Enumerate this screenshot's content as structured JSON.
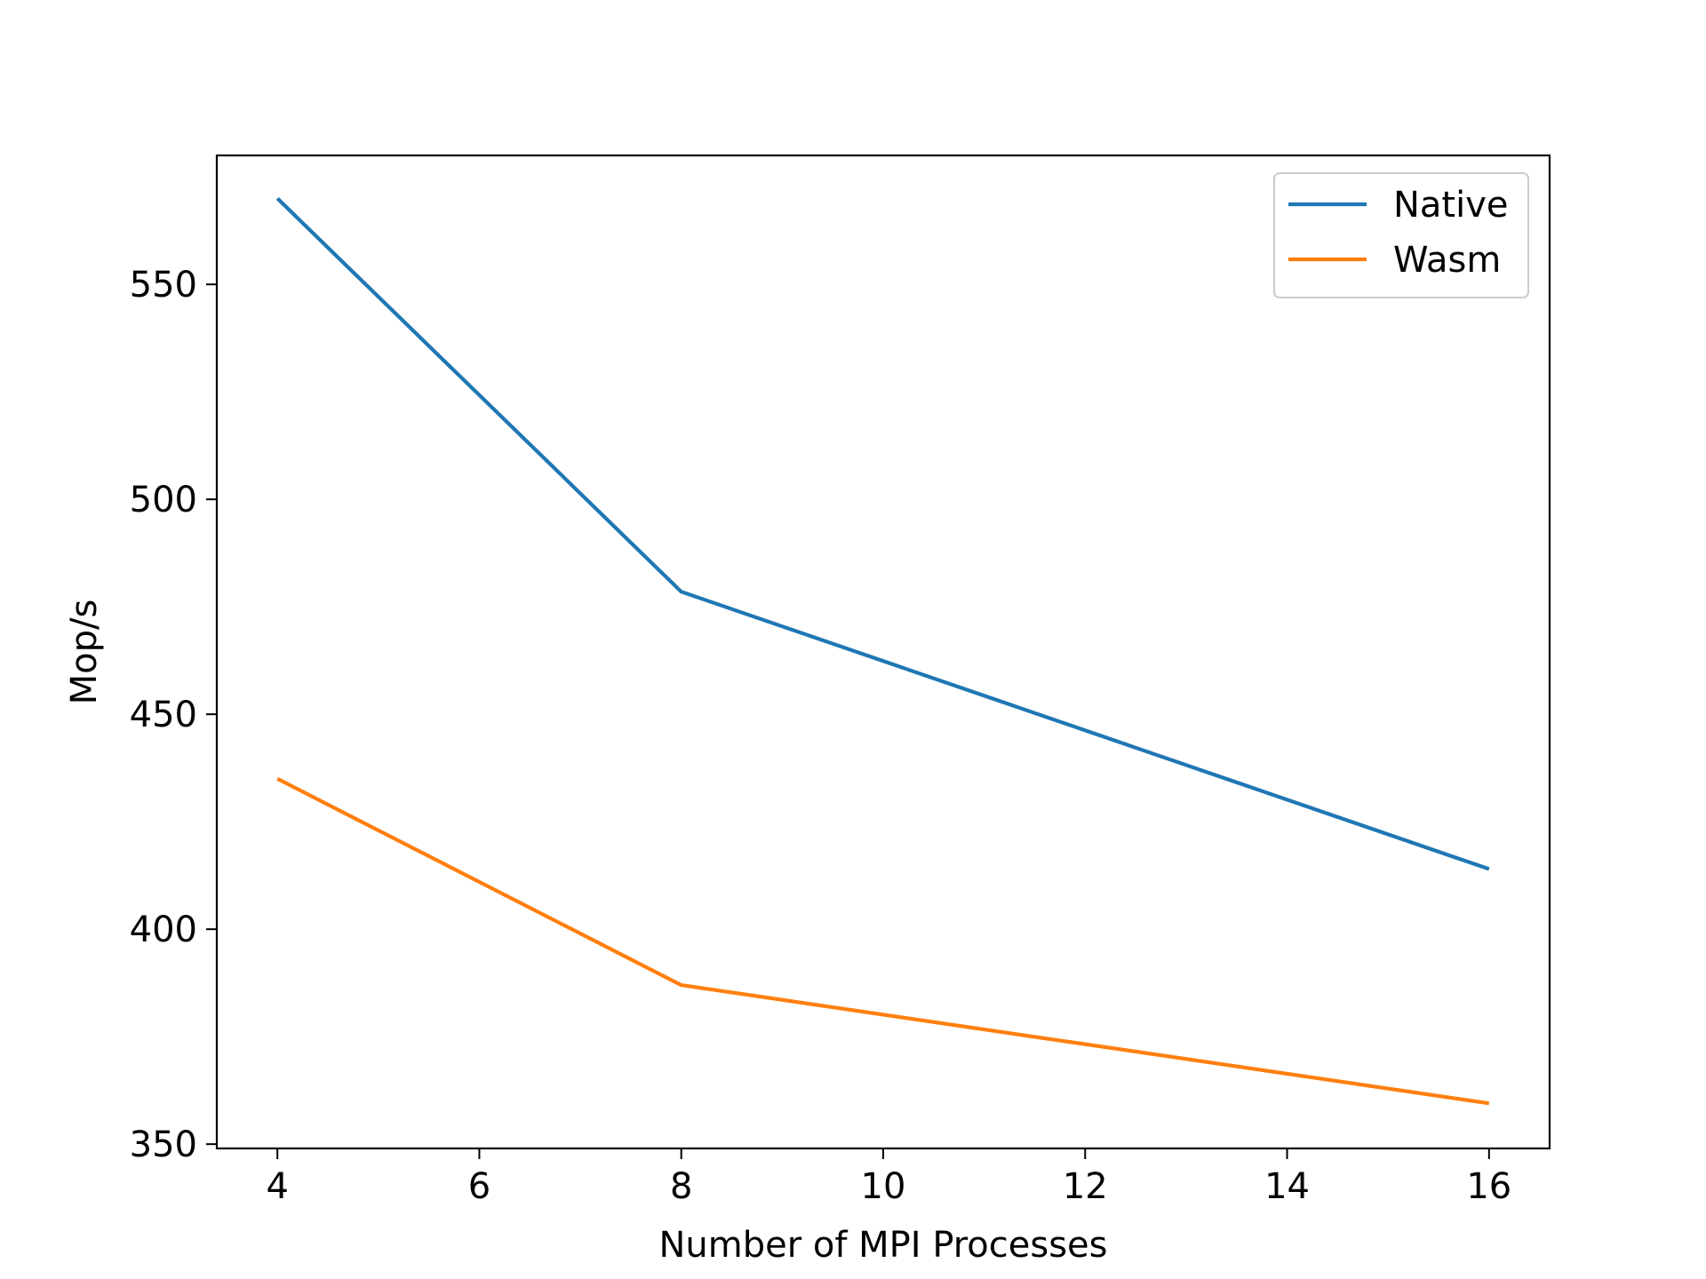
{
  "chart_data": {
    "type": "line",
    "x": [
      4,
      8,
      16
    ],
    "series": [
      {
        "name": "Native",
        "values": [
          570,
          478.5,
          414
        ],
        "color": "#1f77b4"
      },
      {
        "name": "Wasm",
        "values": [
          435,
          387,
          359.5
        ],
        "color": "#ff7f0e"
      }
    ],
    "xlabel": "Number of MPI Processes",
    "ylabel": "Mop/s",
    "xlim": [
      3.4,
      16.6
    ],
    "ylim": [
      349,
      580
    ],
    "xticks": [
      4,
      6,
      8,
      10,
      12,
      14,
      16
    ],
    "yticks": [
      350,
      400,
      450,
      500,
      550
    ],
    "grid": false,
    "legend": "top-right"
  }
}
